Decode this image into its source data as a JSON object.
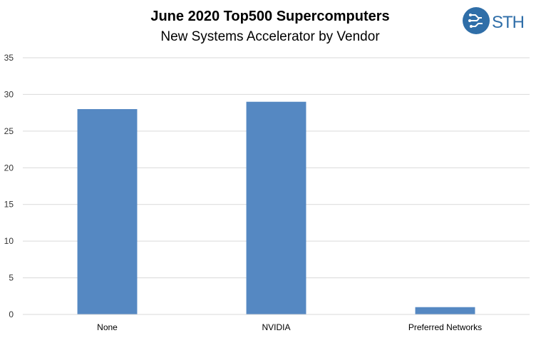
{
  "chart_data": {
    "type": "bar",
    "title": "June 2020 Top500 Supercomputers",
    "subtitle": "New Systems Accelerator by Vendor",
    "categories": [
      "None",
      "NVIDIA",
      "Preferred Networks"
    ],
    "values": [
      28,
      29,
      1
    ],
    "xlabel": "",
    "ylabel": "",
    "ylim": [
      0,
      35
    ],
    "yticks": [
      0,
      5,
      10,
      15,
      20,
      25,
      30,
      35
    ],
    "grid": true,
    "legend": "none",
    "bar_color": "#5588c2",
    "grid_color": "#d9d9d9"
  },
  "logo": {
    "text": "STH",
    "icon": "circuit-head-icon",
    "color": "#2f6ea8"
  }
}
